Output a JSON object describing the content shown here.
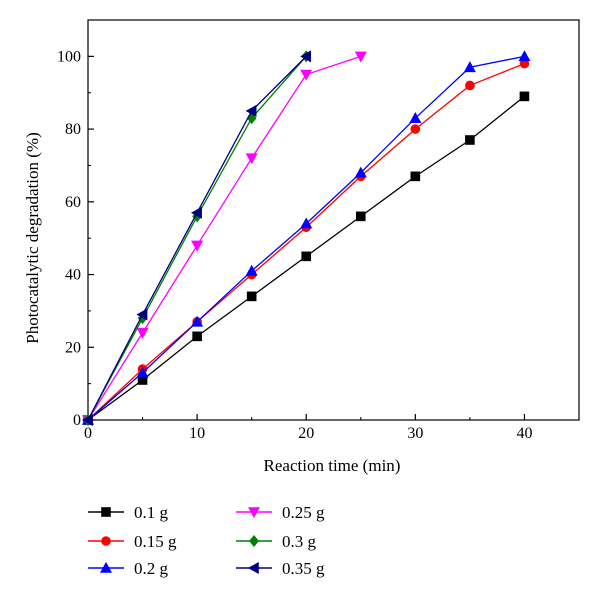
{
  "chart_data": {
    "type": "line",
    "title": "",
    "xlabel": "Reaction time (min)",
    "ylabel": "Photocatalytic degradation (%)",
    "xlim": [
      0,
      45
    ],
    "ylim": [
      0,
      110
    ],
    "xticks": [
      0,
      10,
      20,
      30,
      40
    ],
    "yticks": [
      0,
      20,
      40,
      60,
      80,
      100
    ],
    "grid": false,
    "legend_position": "bottom",
    "series": [
      {
        "name": "0.1 g",
        "color": "#000000",
        "marker": "square",
        "x": [
          0,
          5,
          10,
          15,
          20,
          25,
          30,
          35,
          40
        ],
        "y": [
          0,
          11,
          23,
          34,
          45,
          56,
          67,
          77,
          89
        ]
      },
      {
        "name": "0.15 g",
        "color": "#ff0000",
        "marker": "circle",
        "x": [
          0,
          5,
          10,
          15,
          20,
          25,
          30,
          35,
          40
        ],
        "y": [
          0,
          14,
          27,
          40,
          53,
          67,
          80,
          92,
          98
        ]
      },
      {
        "name": "0.2 g",
        "color": "#0000ff",
        "marker": "triangle-up",
        "x": [
          0,
          5,
          10,
          15,
          20,
          25,
          30,
          35,
          40
        ],
        "y": [
          0,
          13,
          27,
          41,
          54,
          68,
          83,
          97,
          100
        ]
      },
      {
        "name": "0.25 g",
        "color": "#ff00ff",
        "marker": "triangle-down",
        "x": [
          0,
          5,
          10,
          15,
          20,
          25
        ],
        "y": [
          0,
          24,
          48,
          72,
          95,
          100
        ]
      },
      {
        "name": "0.3 g",
        "color": "#008000",
        "marker": "diamond",
        "x": [
          0,
          5,
          10,
          15,
          20
        ],
        "y": [
          0,
          28,
          56,
          83,
          100
        ]
      },
      {
        "name": "0.35 g",
        "color": "#000080",
        "marker": "triangle-left",
        "x": [
          0,
          5,
          10,
          15,
          20
        ],
        "y": [
          0,
          29,
          57,
          85,
          100
        ]
      }
    ]
  }
}
